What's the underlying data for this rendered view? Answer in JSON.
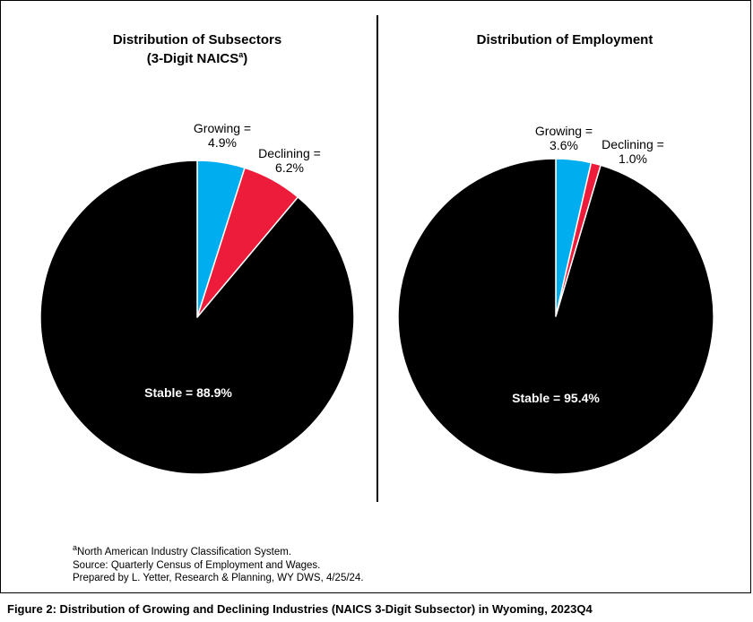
{
  "charts": {
    "left_title_line1": "Distribution of Subsectors",
    "left_title_line2": "(3-Digit NAICS",
    "left_title_sup": "a",
    "left_title_end": ")",
    "right_title": "Distribution of Employment"
  },
  "chart_data": [
    {
      "type": "pie",
      "title": "Distribution of Subsectors (3-Digit NAICSa)",
      "slices": [
        {
          "label_line1": "Growing =",
          "label_line2": "4.9%",
          "value": 4.9,
          "color": "#00aeef"
        },
        {
          "label_line1": "Declining =",
          "label_line2": "6.2%",
          "value": 6.2,
          "color": "#ed1c3a"
        },
        {
          "label_line1": "Stable = 88.9%",
          "label_line2": "",
          "value": 88.9,
          "color": "#000000"
        }
      ]
    },
    {
      "type": "pie",
      "title": "Distribution of Employment",
      "slices": [
        {
          "label_line1": "Growing =",
          "label_line2": "3.6%",
          "value": 3.6,
          "color": "#00aeef"
        },
        {
          "label_line1": "Declining =",
          "label_line2": "1.0%",
          "value": 1.0,
          "color": "#ed1c3a"
        },
        {
          "label_line1": "Stable = 95.4%",
          "label_line2": "",
          "value": 95.4,
          "color": "#000000"
        }
      ]
    }
  ],
  "footnotes": {
    "sup": "a",
    "line1": "North American Industry Classification System.",
    "line2": "Source: Quarterly Census of Employment and Wages.",
    "line3": "Prepared by L. Yetter, Research & Planning, WY DWS, 4/25/24."
  },
  "caption": "Figure 2: Distribution of Growing and Declining Industries (NAICS 3-Digit Subsector) in Wyoming, 2023Q4"
}
